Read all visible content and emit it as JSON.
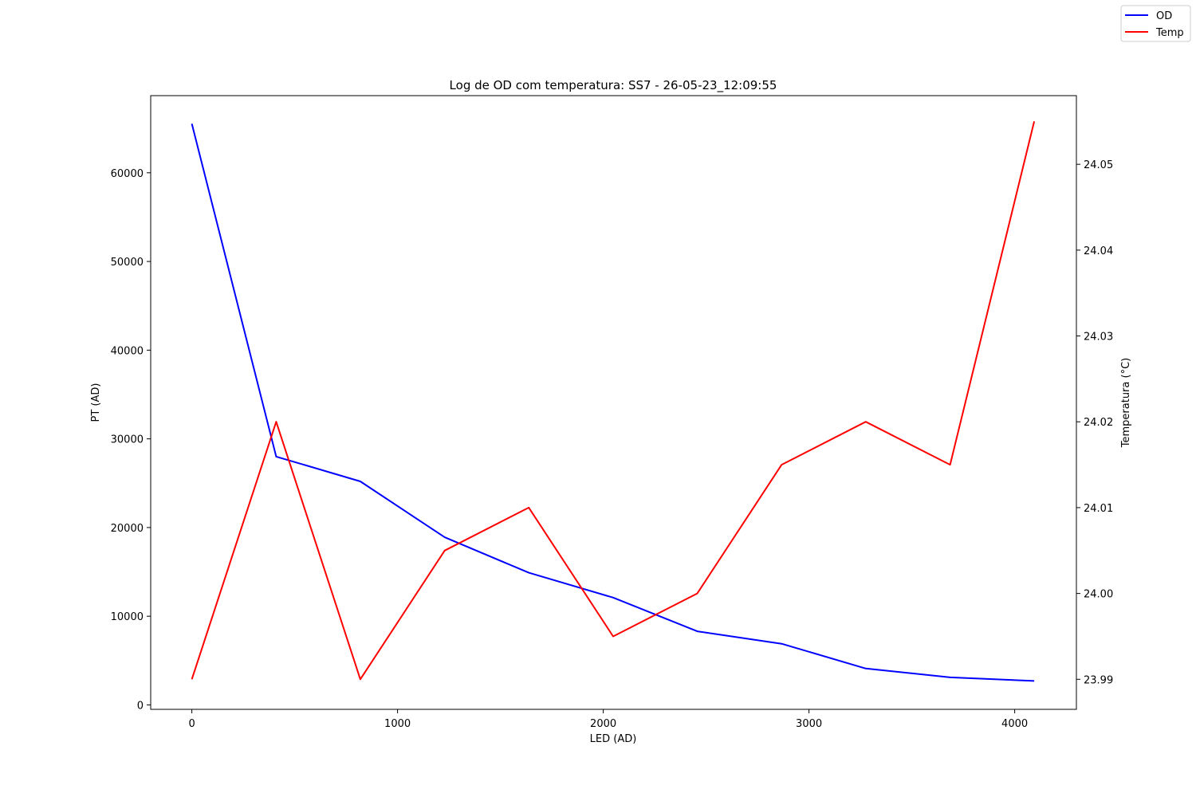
{
  "chart_data": {
    "type": "line",
    "title": "Log de OD com temperatura: SS7 - 26-05-23_12:09:55",
    "xlabel": "LED (AD)",
    "ylabel": "PT (AD)",
    "y2label": "Temperatura (°C)",
    "xlim": [
      -200,
      4300
    ],
    "ylim": [
      -500,
      68700
    ],
    "y2lim": [
      23.9865,
      24.058
    ],
    "x_ticks": [
      0,
      1000,
      2000,
      3000,
      4000
    ],
    "y_ticks": [
      0,
      10000,
      20000,
      30000,
      40000,
      50000,
      60000
    ],
    "y2_ticks": [
      23.99,
      24.0,
      24.01,
      24.02,
      24.03,
      24.04,
      24.05
    ],
    "x_tick_labels": [
      "0",
      "1000",
      "2000",
      "3000",
      "4000"
    ],
    "y_tick_labels": [
      "0",
      "10000",
      "20000",
      "30000",
      "40000",
      "50000",
      "60000"
    ],
    "y2_tick_labels": [
      "23.99",
      "24.00",
      "24.01",
      "24.02",
      "24.03",
      "24.04",
      "24.05"
    ],
    "grid": false,
    "legend_position": "top-right",
    "x": [
      0,
      410,
      819,
      1229,
      1638,
      2048,
      2457,
      2867,
      3276,
      3686,
      4095
    ],
    "series": [
      {
        "name": "OD",
        "axis": "left",
        "color": "#0000ff",
        "values": [
          65535,
          28000,
          25200,
          18900,
          14900,
          12100,
          8300,
          6900,
          4100,
          3100,
          2700
        ]
      },
      {
        "name": "Temp",
        "axis": "right",
        "color": "#ff0000",
        "values": [
          23.99,
          24.02,
          23.99,
          24.005,
          24.01,
          23.995,
          24.0,
          24.015,
          24.02,
          24.015,
          24.055
        ]
      }
    ]
  }
}
